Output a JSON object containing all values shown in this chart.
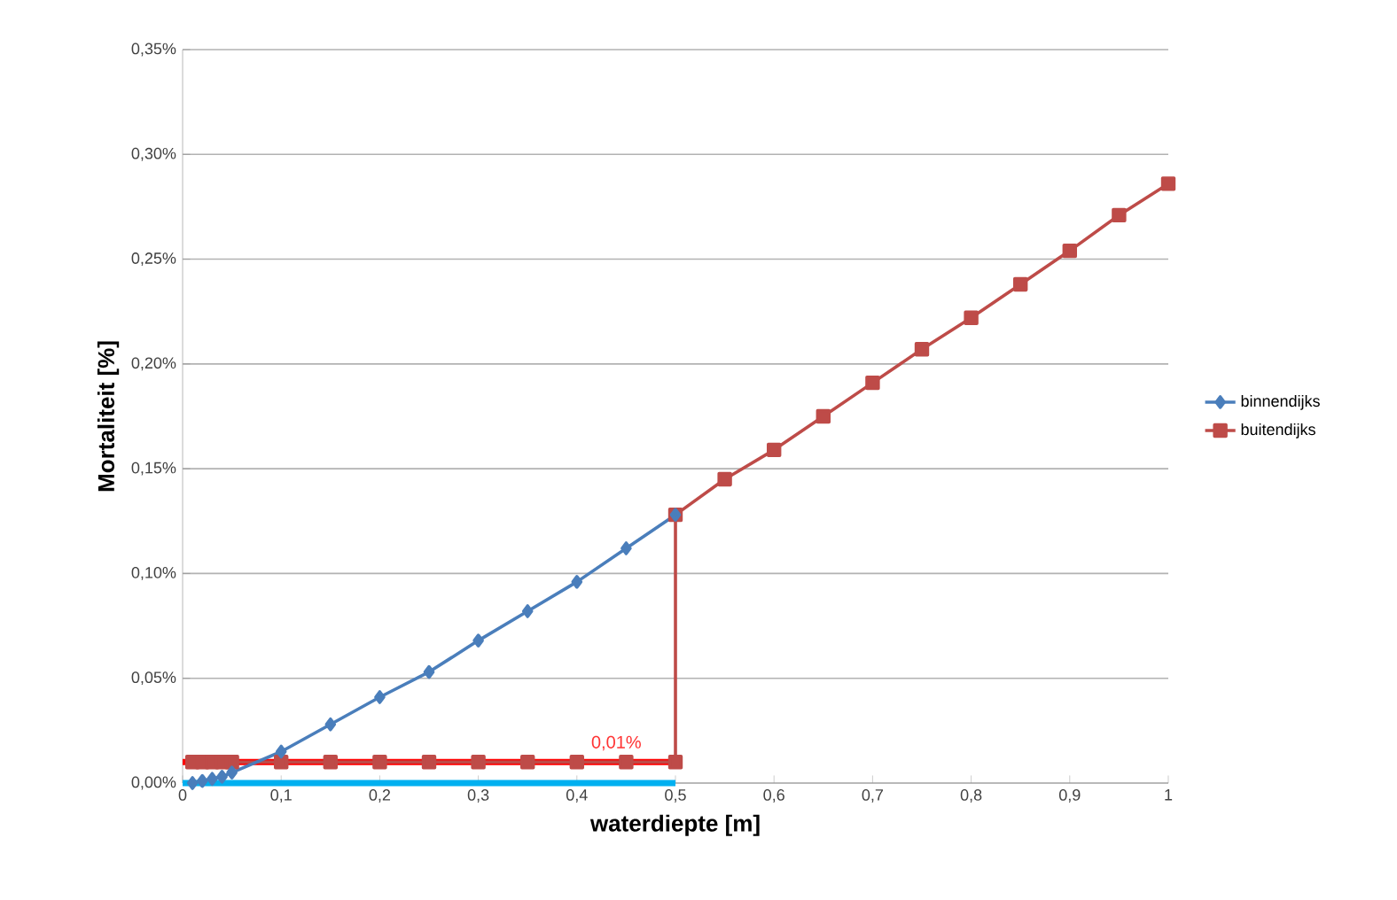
{
  "chart_data": {
    "type": "line",
    "xlabel": "waterdiepte [m]",
    "ylabel": "Mortaliteit [%]",
    "xlim": [
      0,
      1
    ],
    "ylim": [
      0,
      0.35
    ],
    "xticks": [
      {
        "value": 0,
        "label": "0"
      },
      {
        "value": 0.1,
        "label": "0,1"
      },
      {
        "value": 0.2,
        "label": "0,2"
      },
      {
        "value": 0.3,
        "label": "0,3"
      },
      {
        "value": 0.4,
        "label": "0,4"
      },
      {
        "value": 0.5,
        "label": "0,5"
      },
      {
        "value": 0.6,
        "label": "0,6"
      },
      {
        "value": 0.7,
        "label": "0,7"
      },
      {
        "value": 0.8,
        "label": "0,8"
      },
      {
        "value": 0.9,
        "label": "0,9"
      },
      {
        "value": 1,
        "label": "1"
      }
    ],
    "yticks": [
      {
        "value": 0,
        "label": "0,00%"
      },
      {
        "value": 0.05,
        "label": "0,05%"
      },
      {
        "value": 0.1,
        "label": "0,10%"
      },
      {
        "value": 0.15,
        "label": "0,15%"
      },
      {
        "value": 0.2,
        "label": "0,20%"
      },
      {
        "value": 0.25,
        "label": "0,25%"
      },
      {
        "value": 0.3,
        "label": "0,30%"
      },
      {
        "value": 0.35,
        "label": "0,35%"
      }
    ],
    "grid": "y",
    "legend": "right",
    "series": [
      {
        "color": "#00b0f0",
        "marker": "none",
        "x": [
          0,
          0.5
        ],
        "values": [
          0,
          0
        ]
      },
      {
        "name": "binnendijks",
        "color": "#4a7ebb",
        "marker": "diamond",
        "x": [
          0.01,
          0.02,
          0.03,
          0.04,
          0.05,
          0.1,
          0.15,
          0.2,
          0.25,
          0.3,
          0.35,
          0.4,
          0.45,
          0.5
        ],
        "values": [
          0,
          0.001,
          0.002,
          0.003,
          0.005,
          0.015,
          0.028,
          0.041,
          0.053,
          0.068,
          0.082,
          0.096,
          0.112,
          0.128
        ]
      },
      {
        "name": "buitendijks",
        "color": "#be4b48",
        "marker": "square",
        "x": [
          0.01,
          0.02,
          0.03,
          0.04,
          0.05,
          0.1,
          0.15,
          0.2,
          0.25,
          0.3,
          0.35,
          0.4,
          0.45,
          0.5,
          0.5,
          0.55,
          0.6,
          0.65,
          0.7,
          0.75,
          0.8,
          0.85,
          0.9,
          0.95,
          1
        ],
        "values": [
          0.01,
          0.01,
          0.01,
          0.01,
          0.01,
          0.01,
          0.01,
          0.01,
          0.01,
          0.01,
          0.01,
          0.01,
          0.01,
          0.01,
          0.128,
          0.145,
          0.159,
          0.175,
          0.191,
          0.207,
          0.222,
          0.238,
          0.254,
          0.271,
          0.286
        ]
      },
      {
        "color": "#ff0000",
        "marker": "none",
        "x": [
          0,
          0.5
        ],
        "values": [
          0.01,
          0.01
        ]
      }
    ],
    "annotations": [
      {
        "text": "0,01%",
        "x": 0.44,
        "y": 0.01
      }
    ]
  }
}
